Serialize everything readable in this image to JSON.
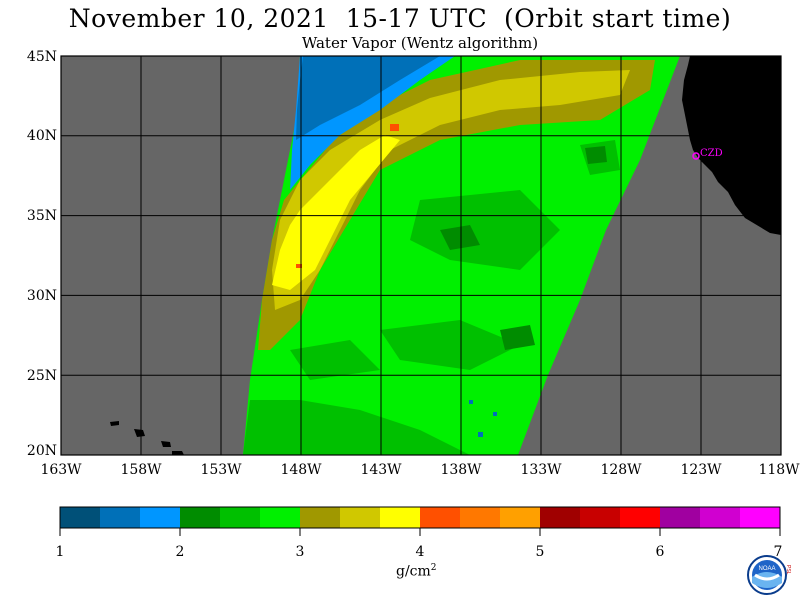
{
  "header": {
    "title": "November 10, 2021  15-17 UTC  (Orbit start time)",
    "subtitle": "Water Vapor (Wentz algorithm)"
  },
  "map": {
    "lat_labels": [
      "45N",
      "40N",
      "35N",
      "30N",
      "25N",
      "20N"
    ],
    "lon_labels": [
      "163W",
      "158W",
      "153W",
      "148W",
      "143W",
      "138W",
      "133W",
      "128W",
      "123W",
      "118W"
    ],
    "lat_range": [
      20,
      45
    ],
    "lon_range": [
      -163,
      -118
    ],
    "station_label": "CZD",
    "colors": {
      "nodata": "#666666",
      "land": "#000000",
      "station": "#ff00ff"
    }
  },
  "colorbar": {
    "tick_labels": [
      "1",
      "2",
      "3",
      "4",
      "5",
      "6",
      "7"
    ],
    "unit_base": "g/cm",
    "unit_exp": "2",
    "colors": [
      "#005078",
      "#0070b8",
      "#0096ff",
      "#008c00",
      "#00c000",
      "#00f000",
      "#a09800",
      "#d0c800",
      "#ffff00",
      "#ff5000",
      "#ff7800",
      "#ffa000",
      "#a00000",
      "#c80000",
      "#ff0000",
      "#a000a0",
      "#d000d0",
      "#ff00ff"
    ]
  },
  "logo": {
    "name": "NOAA",
    "side_letters": "PSL"
  }
}
